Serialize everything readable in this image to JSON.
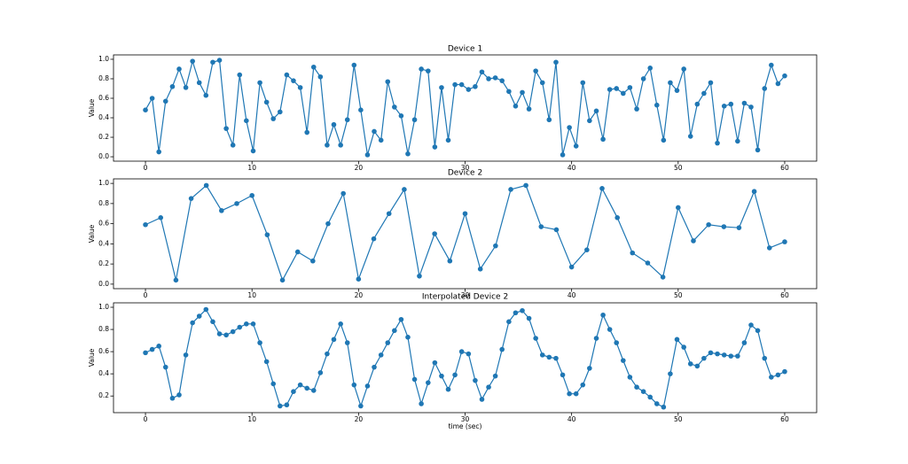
{
  "chart_data": [
    {
      "type": "line",
      "title": "Device 1",
      "ylabel": "Value",
      "color": "#1f77b4",
      "xlim": [
        -3,
        63
      ],
      "ylim": [
        -0.045,
        1.045
      ],
      "xticks": [
        0,
        10,
        20,
        30,
        40,
        50,
        60
      ],
      "yticks": [
        {
          "value": 0,
          "label": "0.0"
        },
        0.2,
        0.4,
        0.6,
        0.8,
        {
          "value": 1,
          "label": "1.0"
        }
      ],
      "x": [
        0,
        0.63,
        1.26,
        1.89,
        2.53,
        3.16,
        3.79,
        4.42,
        5.05,
        5.68,
        6.32,
        6.95,
        7.58,
        8.21,
        8.84,
        9.47,
        10.11,
        10.74,
        11.37,
        12.0,
        12.63,
        13.26,
        13.89,
        14.53,
        15.16,
        15.79,
        16.42,
        17.05,
        17.68,
        18.32,
        18.95,
        19.58,
        20.21,
        20.84,
        21.47,
        22.11,
        22.74,
        23.37,
        24.0,
        24.63,
        25.26,
        25.89,
        26.53,
        27.16,
        27.79,
        28.42,
        29.05,
        29.68,
        30.32,
        30.95,
        31.58,
        32.21,
        32.84,
        33.47,
        34.11,
        34.74,
        35.37,
        36.0,
        36.63,
        37.26,
        37.89,
        38.53,
        39.16,
        39.79,
        40.42,
        41.05,
        41.68,
        42.32,
        42.95,
        43.58,
        44.21,
        44.84,
        45.47,
        46.11,
        46.74,
        47.37,
        48.0,
        48.63,
        49.26,
        49.89,
        50.53,
        51.16,
        51.79,
        52.42,
        53.05,
        53.68,
        54.32,
        54.95,
        55.58,
        56.21,
        56.84,
        57.47,
        58.11,
        58.74,
        59.37,
        60
      ],
      "values": [
        0.48,
        0.6,
        0.05,
        0.57,
        0.72,
        0.9,
        0.71,
        0.98,
        0.76,
        0.63,
        0.97,
        0.99,
        0.29,
        0.12,
        0.84,
        0.37,
        0.06,
        0.76,
        0.56,
        0.39,
        0.46,
        0.84,
        0.78,
        0.71,
        0.25,
        0.92,
        0.82,
        0.12,
        0.33,
        0.12,
        0.38,
        0.94,
        0.48,
        0.02,
        0.26,
        0.17,
        0.77,
        0.51,
        0.42,
        0.03,
        0.38,
        0.9,
        0.88,
        0.1,
        0.71,
        0.17,
        0.74,
        0.74,
        0.69,
        0.72,
        0.87,
        0.8,
        0.81,
        0.78,
        0.67,
        0.52,
        0.66,
        0.49,
        0.88,
        0.76,
        0.38,
        0.97,
        0.02,
        0.3,
        0.11,
        0.76,
        0.37,
        0.47,
        0.18,
        0.69,
        0.7,
        0.65,
        0.71,
        0.49,
        0.8,
        0.91,
        0.53,
        0.17,
        0.76,
        0.68,
        0.9,
        0.21,
        0.54,
        0.65,
        0.76,
        0.14,
        0.52,
        0.54,
        0.16,
        0.55,
        0.51,
        0.07,
        0.7,
        0.94,
        0.75,
        0.83
      ]
    },
    {
      "type": "line",
      "title": "Device 2",
      "ylabel": "Value",
      "color": "#1f77b4",
      "xlim": [
        -3,
        63
      ],
      "ylim": [
        -0.045,
        1.045
      ],
      "xticks": [
        0,
        10,
        20,
        30,
        40,
        50,
        60
      ],
      "yticks": [
        {
          "value": 0,
          "label": "0.0"
        },
        0.2,
        0.4,
        0.6,
        0.8,
        {
          "value": 1,
          "label": "1.0"
        }
      ],
      "x": [
        0,
        1.43,
        2.86,
        4.29,
        5.71,
        7.14,
        8.57,
        10.0,
        11.43,
        12.86,
        14.29,
        15.71,
        17.14,
        18.57,
        20.0,
        21.43,
        22.86,
        24.29,
        25.71,
        27.14,
        28.57,
        30.0,
        31.43,
        32.86,
        34.29,
        35.71,
        37.14,
        38.57,
        40.0,
        41.43,
        42.86,
        44.29,
        45.71,
        47.14,
        48.57,
        50.0,
        51.43,
        52.86,
        54.29,
        55.71,
        57.14,
        58.57,
        60.0
      ],
      "values": [
        0.59,
        0.66,
        0.04,
        0.85,
        0.98,
        0.73,
        0.8,
        0.88,
        0.49,
        0.04,
        0.32,
        0.23,
        0.6,
        0.9,
        0.05,
        0.45,
        0.7,
        0.94,
        0.08,
        0.5,
        0.23,
        0.7,
        0.15,
        0.38,
        0.94,
        0.98,
        0.57,
        0.54,
        0.17,
        0.34,
        0.95,
        0.66,
        0.31,
        0.21,
        0.07,
        0.76,
        0.43,
        0.59,
        0.57,
        0.56,
        0.92,
        0.36,
        0.42
      ]
    },
    {
      "type": "line",
      "title": "Interpolated Device 2",
      "ylabel": "Value",
      "xlabel": "time (sec)",
      "color": "#1f77b4",
      "xlim": [
        -3,
        63
      ],
      "ylim": [
        0.05,
        1.04
      ],
      "xticks": [
        0,
        10,
        20,
        30,
        40,
        50,
        60
      ],
      "yticks": [
        0.2,
        0.4,
        0.6,
        0.8,
        {
          "value": 1,
          "label": "1.0"
        }
      ],
      "x": [
        0,
        0.63,
        1.26,
        1.89,
        2.53,
        3.16,
        3.79,
        4.42,
        5.05,
        5.68,
        6.32,
        6.95,
        7.58,
        8.21,
        8.84,
        9.47,
        10.11,
        10.74,
        11.37,
        12.0,
        12.63,
        13.26,
        13.89,
        14.53,
        15.16,
        15.79,
        16.42,
        17.05,
        17.68,
        18.32,
        18.95,
        19.58,
        20.21,
        20.84,
        21.47,
        22.11,
        22.74,
        23.37,
        24.0,
        24.63,
        25.26,
        25.89,
        26.53,
        27.16,
        27.79,
        28.42,
        29.05,
        29.68,
        30.32,
        30.95,
        31.58,
        32.21,
        32.84,
        33.47,
        34.11,
        34.74,
        35.37,
        36.0,
        36.63,
        37.26,
        37.89,
        38.53,
        39.16,
        39.79,
        40.42,
        41.05,
        41.68,
        42.32,
        42.95,
        43.58,
        44.21,
        44.84,
        45.47,
        46.11,
        46.74,
        47.37,
        48.0,
        48.63,
        49.26,
        49.89,
        50.53,
        51.16,
        51.79,
        52.42,
        53.05,
        53.68,
        54.32,
        54.95,
        55.58,
        56.21,
        56.84,
        57.47,
        58.11,
        58.74,
        59.37,
        60
      ],
      "values": [
        0.59,
        0.62,
        0.65,
        0.46,
        0.18,
        0.21,
        0.57,
        0.86,
        0.92,
        0.98,
        0.87,
        0.76,
        0.75,
        0.78,
        0.82,
        0.85,
        0.85,
        0.68,
        0.51,
        0.31,
        0.11,
        0.12,
        0.24,
        0.3,
        0.27,
        0.25,
        0.41,
        0.58,
        0.71,
        0.85,
        0.68,
        0.3,
        0.11,
        0.29,
        0.46,
        0.57,
        0.68,
        0.79,
        0.89,
        0.73,
        0.35,
        0.13,
        0.32,
        0.5,
        0.38,
        0.26,
        0.39,
        0.6,
        0.58,
        0.34,
        0.17,
        0.28,
        0.38,
        0.62,
        0.87,
        0.95,
        0.97,
        0.9,
        0.72,
        0.57,
        0.55,
        0.54,
        0.39,
        0.22,
        0.22,
        0.3,
        0.45,
        0.72,
        0.93,
        0.8,
        0.68,
        0.52,
        0.37,
        0.28,
        0.24,
        0.19,
        0.13,
        0.1,
        0.4,
        0.71,
        0.64,
        0.49,
        0.47,
        0.54,
        0.59,
        0.58,
        0.57,
        0.56,
        0.56,
        0.68,
        0.84,
        0.79,
        0.54,
        0.37,
        0.39,
        0.42
      ]
    }
  ]
}
